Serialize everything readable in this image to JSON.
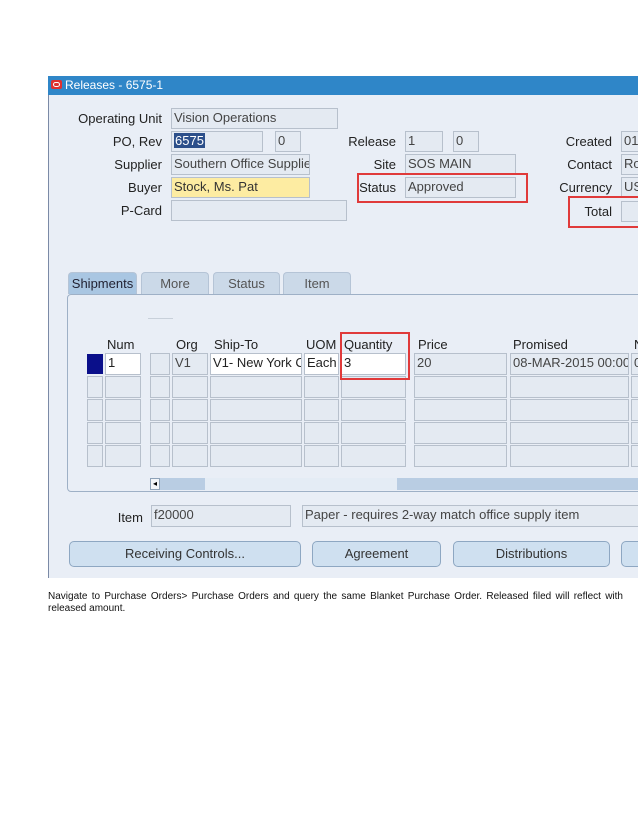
{
  "window": {
    "title": "Releases - 6575-1"
  },
  "header": {
    "operating_unit": {
      "label": "Operating Unit",
      "value": "Vision Operations"
    },
    "po_rev": {
      "label": "PO, Rev",
      "po": "6575",
      "rev": "0"
    },
    "supplier": {
      "label": "Supplier",
      "value": "Southern Office Supplie"
    },
    "buyer": {
      "label": "Buyer",
      "value": "Stock, Ms. Pat"
    },
    "pcard": {
      "label": "P-Card",
      "value": ""
    },
    "release": {
      "label": "Release",
      "num": "1",
      "rev": "0"
    },
    "site": {
      "label": "Site",
      "value": "SOS MAIN"
    },
    "status": {
      "label": "Status",
      "value": "Approved"
    },
    "created": {
      "label": "Created",
      "value": "01-"
    },
    "contact": {
      "label": "Contact",
      "value": "Ro"
    },
    "currency": {
      "label": "Currency",
      "value": "US"
    },
    "total": {
      "label": "Total",
      "value": ""
    }
  },
  "tabs": [
    {
      "label": "Shipments",
      "active": true
    },
    {
      "label": "More"
    },
    {
      "label": "Status"
    },
    {
      "label": "Item"
    }
  ],
  "shipments": {
    "columns": [
      "Num",
      "Org",
      "Ship-To",
      "UOM",
      "Quantity",
      "Price",
      "Promised",
      "N"
    ],
    "rows": [
      {
        "num": "1",
        "org": "V1",
        "ship_to": "V1- New York C",
        "uom": "Each",
        "quantity": "3",
        "price": "20",
        "promised": "08-MAR-2015 00:00:",
        "next": "0"
      }
    ]
  },
  "item": {
    "label": "Item",
    "code": "f20000",
    "description": "Paper - requires 2-way match office supply item"
  },
  "buttons": {
    "receiving": "Receiving Controls...",
    "agreement": "Agreement",
    "distributions": "Distributions"
  },
  "caption": "Navigate to Purchase Orders> Purchase Orders and query the same Blanket Purchase Order. Released filed will reflect with released amount."
}
